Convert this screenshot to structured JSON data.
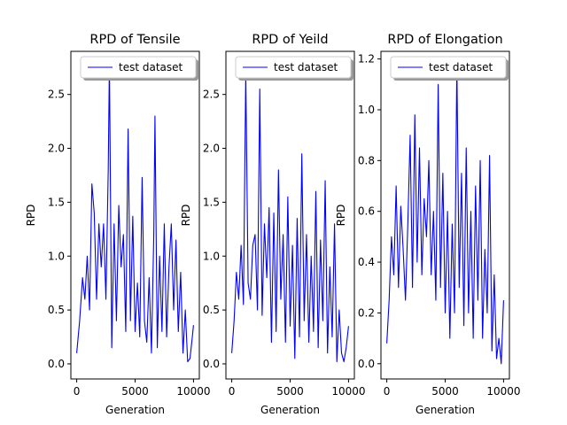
{
  "chart_data": [
    {
      "type": "line",
      "title": "RPD of Tensile",
      "xlabel": "Generation",
      "ylabel": "RPD",
      "xlim": [
        -500,
        10500
      ],
      "ylim": [
        -0.14,
        2.9
      ],
      "xticks": [
        0,
        5000,
        10000
      ],
      "xtick_labels": [
        "0",
        "5000",
        "10000"
      ],
      "yticks": [
        0,
        0.5,
        1.0,
        1.5,
        2.0,
        2.5
      ],
      "ytick_labels": [
        "0.0",
        "0.5",
        "1.0",
        "1.5",
        "2.0",
        "2.5"
      ],
      "legend": "test dataset",
      "legend_position": "upper-right",
      "series": [
        {
          "name": "test dataset",
          "color": "#0000ff",
          "x": [
            0,
            250,
            500,
            700,
            900,
            1100,
            1300,
            1500,
            1700,
            1900,
            2100,
            2300,
            2500,
            2700,
            2800,
            3000,
            3200,
            3400,
            3600,
            3800,
            4000,
            4200,
            4400,
            4600,
            4800,
            5000,
            5200,
            5400,
            5600,
            5800,
            6000,
            6200,
            6400,
            6600,
            6700,
            6900,
            7100,
            7300,
            7500,
            7700,
            7900,
            8100,
            8300,
            8500,
            8700,
            8900,
            9100,
            9300,
            9500,
            9700,
            9900,
            10000
          ],
          "y": [
            0.1,
            0.4,
            0.8,
            0.6,
            1.0,
            0.5,
            1.67,
            1.4,
            0.6,
            1.3,
            0.9,
            1.3,
            0.6,
            1.8,
            2.8,
            0.15,
            1.3,
            0.4,
            1.47,
            0.9,
            1.2,
            0.3,
            2.18,
            0.4,
            1.37,
            0.3,
            0.75,
            0.25,
            1.73,
            0.4,
            0.2,
            0.8,
            0.1,
            1.2,
            2.3,
            0.15,
            1.0,
            0.3,
            1.3,
            0.25,
            0.9,
            1.3,
            0.5,
            1.15,
            0.3,
            0.85,
            0.1,
            0.5,
            0.02,
            0.05,
            0.25,
            0.36
          ]
        }
      ]
    },
    {
      "type": "line",
      "title": "RPD of Yeild",
      "xlabel": "Generation",
      "ylabel": "RPD",
      "xlim": [
        -500,
        10500
      ],
      "ylim": [
        -0.14,
        2.9
      ],
      "xticks": [
        0,
        5000,
        10000
      ],
      "xtick_labels": [
        "0",
        "5000",
        "10000"
      ],
      "yticks": [
        0,
        0.5,
        1.0,
        1.5,
        2.0,
        2.5
      ],
      "ytick_labels": [
        "0.0",
        "0.5",
        "1.0",
        "1.5",
        "2.0",
        "2.5"
      ],
      "legend": "test dataset",
      "legend_position": "upper-right",
      "series": [
        {
          "name": "test dataset",
          "color": "#0000ff",
          "x": [
            0,
            200,
            400,
            600,
            800,
            1000,
            1200,
            1400,
            1600,
            1800,
            2000,
            2200,
            2400,
            2600,
            2800,
            3000,
            3200,
            3400,
            3600,
            3800,
            4000,
            4200,
            4400,
            4600,
            4800,
            5000,
            5200,
            5400,
            5600,
            5800,
            6000,
            6200,
            6400,
            6600,
            6800,
            7000,
            7200,
            7400,
            7600,
            7800,
            8000,
            8200,
            8400,
            8600,
            8800,
            9000,
            9200,
            9400,
            9600,
            9800,
            10000
          ],
          "y": [
            0.1,
            0.4,
            0.85,
            0.6,
            1.1,
            0.55,
            2.7,
            0.75,
            0.6,
            1.1,
            1.2,
            0.5,
            2.55,
            0.45,
            1.3,
            0.8,
            1.45,
            0.2,
            1.4,
            0.3,
            1.8,
            0.6,
            1.2,
            0.2,
            1.55,
            0.35,
            1.1,
            0.05,
            1.35,
            0.25,
            1.95,
            0.4,
            1.2,
            0.2,
            1.0,
            0.3,
            1.6,
            0.15,
            1.15,
            0.4,
            1.7,
            0.1,
            0.9,
            0.25,
            1.3,
            0.02,
            0.5,
            0.1,
            0.02,
            0.15,
            0.35
          ]
        }
      ]
    },
    {
      "type": "line",
      "title": "RPD of Elongation",
      "xlabel": "Generation",
      "ylabel": "RPD",
      "xlim": [
        -500,
        10500
      ],
      "ylim": [
        -0.06,
        1.23
      ],
      "xticks": [
        0,
        5000,
        10000
      ],
      "xtick_labels": [
        "0",
        "5000",
        "10000"
      ],
      "yticks": [
        0,
        0.2,
        0.4,
        0.6,
        0.8,
        1.0,
        1.2
      ],
      "ytick_labels": [
        "0.0",
        "0.2",
        "0.4",
        "0.6",
        "0.8",
        "1.0",
        "1.2"
      ],
      "legend": "test dataset",
      "legend_position": "upper-right",
      "series": [
        {
          "name": "test dataset",
          "color": "#0000ff",
          "x": [
            0,
            200,
            400,
            600,
            800,
            1000,
            1200,
            1400,
            1600,
            1800,
            2000,
            2200,
            2400,
            2600,
            2800,
            3000,
            3200,
            3400,
            3600,
            3800,
            4000,
            4200,
            4400,
            4600,
            4800,
            5000,
            5200,
            5400,
            5600,
            5800,
            6000,
            6200,
            6400,
            6600,
            6800,
            7000,
            7200,
            7400,
            7600,
            7800,
            8000,
            8200,
            8400,
            8600,
            8800,
            9000,
            9200,
            9400,
            9600,
            9800,
            10000
          ],
          "y": [
            0.08,
            0.25,
            0.5,
            0.35,
            0.7,
            0.3,
            0.62,
            0.45,
            0.25,
            0.55,
            0.9,
            0.3,
            0.98,
            0.4,
            0.85,
            0.35,
            0.65,
            0.5,
            0.8,
            0.35,
            0.6,
            0.25,
            1.1,
            0.3,
            0.75,
            0.2,
            0.6,
            0.1,
            0.55,
            0.2,
            1.18,
            0.3,
            0.75,
            0.15,
            0.85,
            0.2,
            0.6,
            0.1,
            0.7,
            0.25,
            0.8,
            0.1,
            0.45,
            0.2,
            0.82,
            0.05,
            0.35,
            0.02,
            0.1,
            0.0,
            0.25
          ]
        }
      ]
    }
  ]
}
